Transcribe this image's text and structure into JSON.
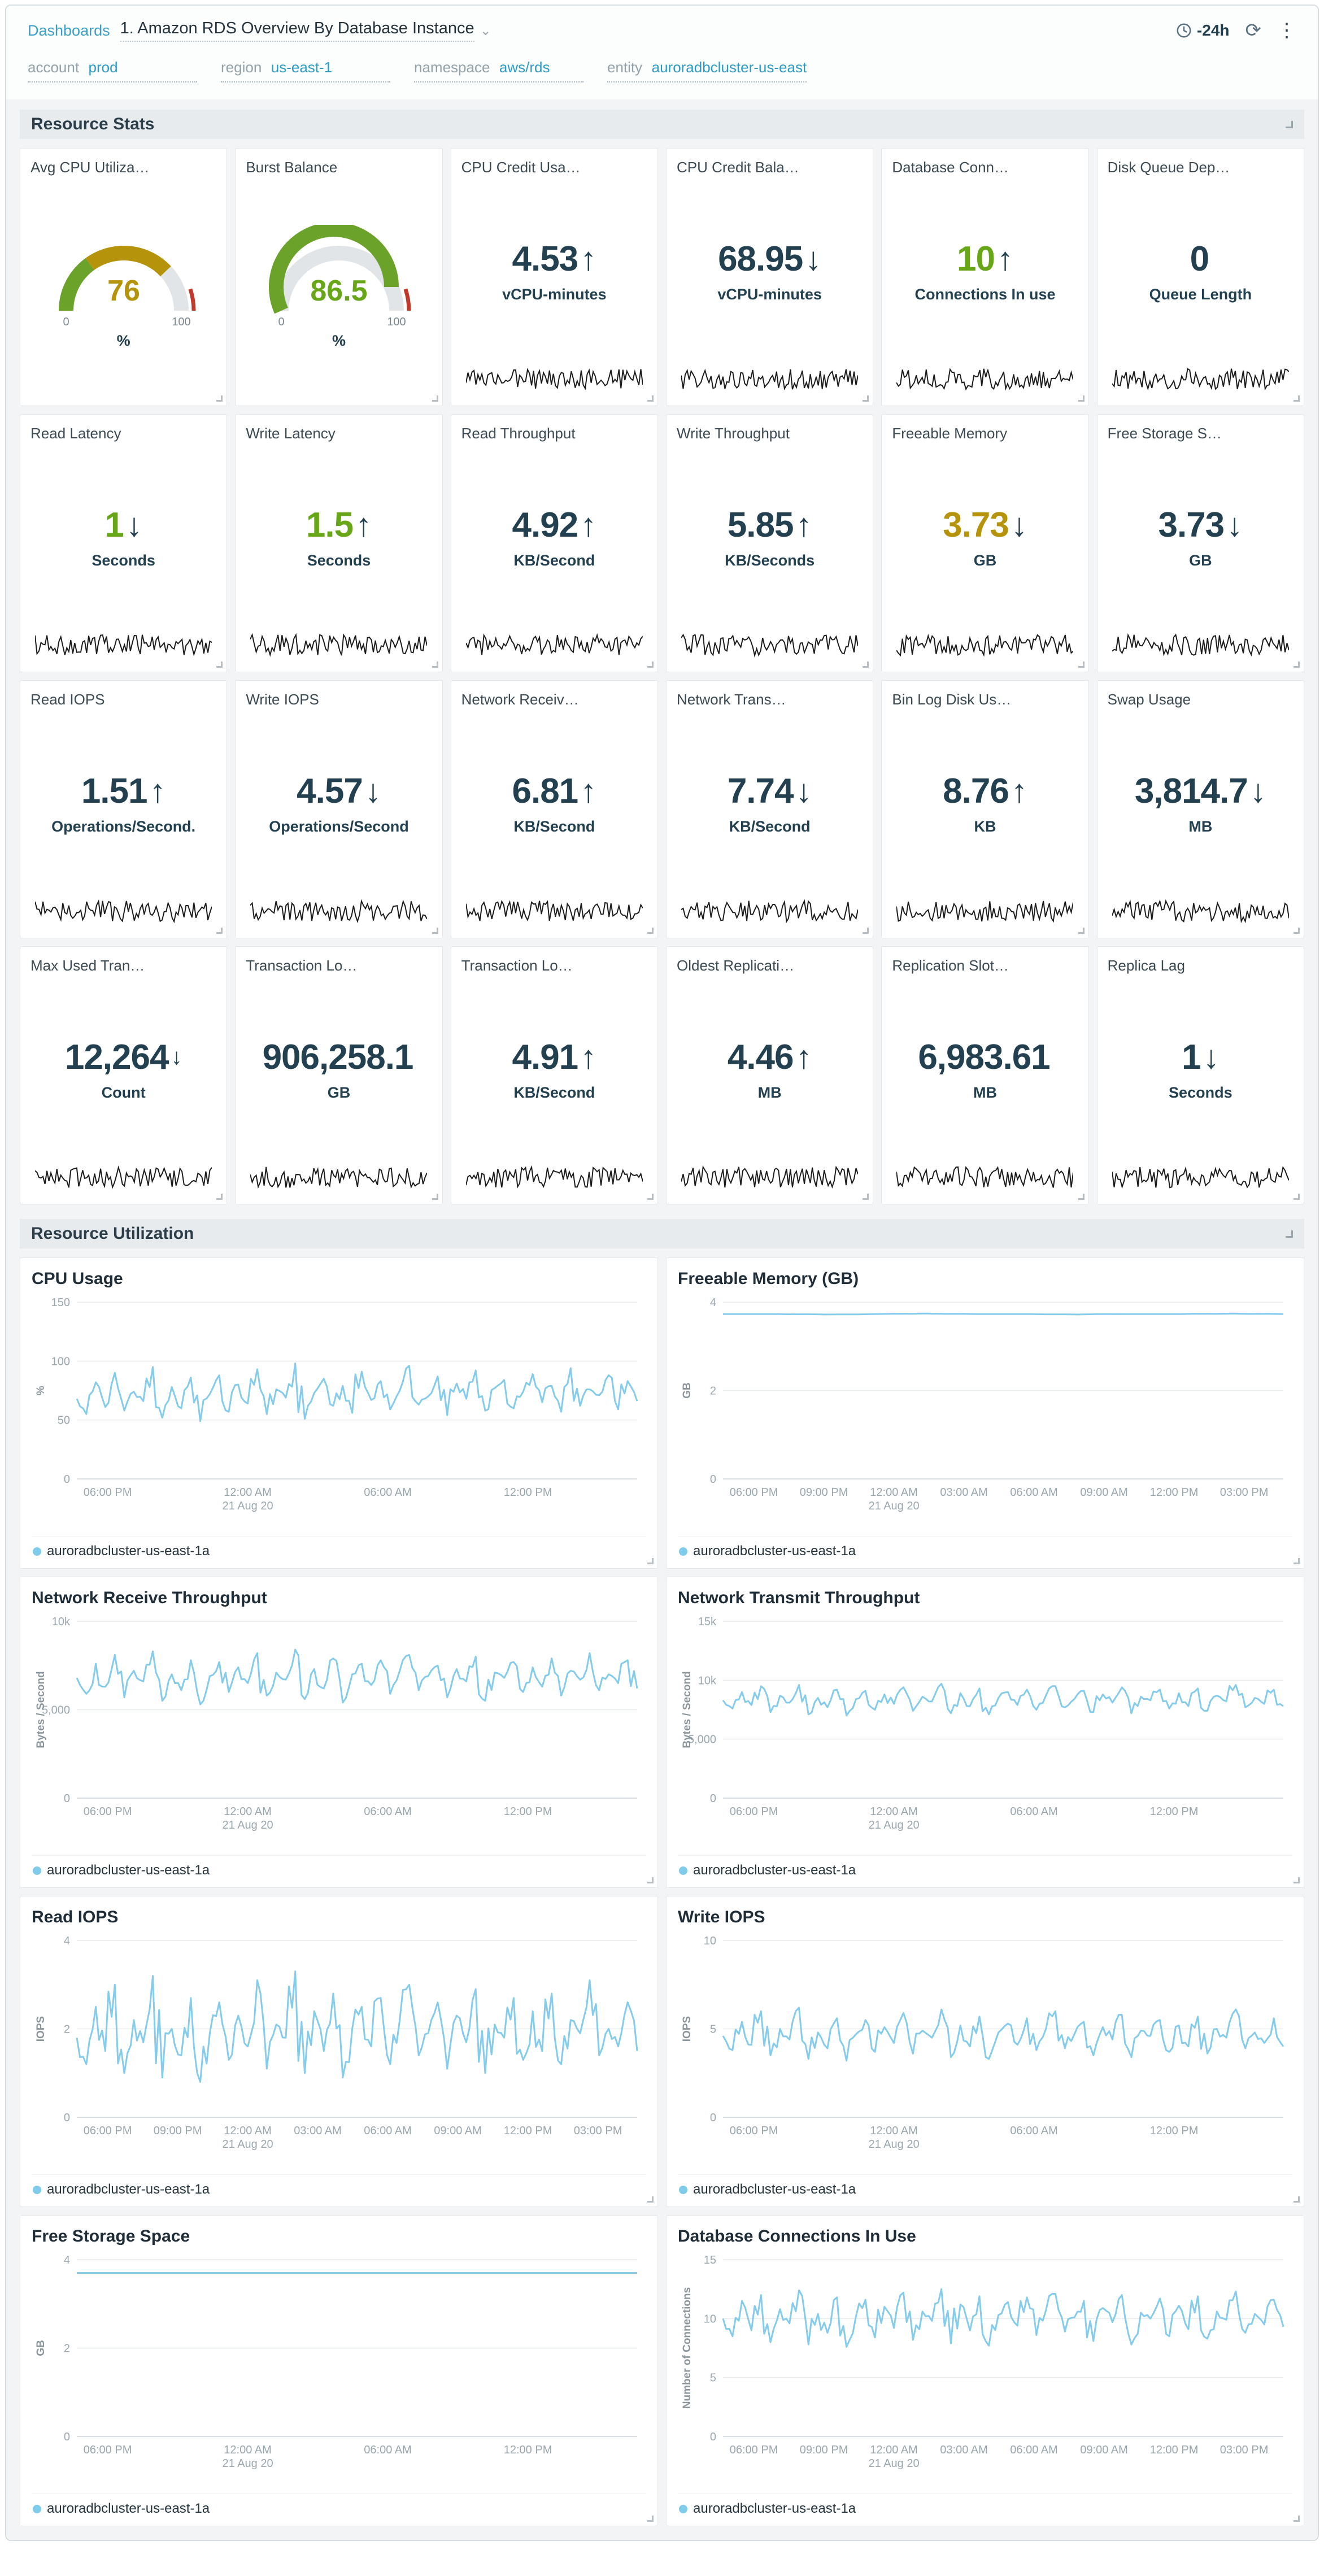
{
  "topbar": {
    "breadcrumb_root": "Dashboards",
    "title": "1. Amazon RDS Overview By Database Instance",
    "time_range": "-24h"
  },
  "filters": [
    {
      "label": "account",
      "value": "prod"
    },
    {
      "label": "region",
      "value": "us-east-1"
    },
    {
      "label": "namespace",
      "value": "aws/rds"
    },
    {
      "label": "entity",
      "value": "auroradbcluster-us-east"
    }
  ],
  "sections": {
    "stats": "Resource Stats",
    "utilization": "Resource Utilization"
  },
  "colors": {
    "accent_blue": "#2b9cc7",
    "line_blue": "#85ccec",
    "green": "#67a617",
    "gold": "#b5930b",
    "red": "#c0392b",
    "navy": "#22404f"
  },
  "stats": {
    "cards": [
      {
        "title": "Avg CPU Utiliza…",
        "type": "gauge",
        "unit": "%",
        "gauge": {
          "value": "76",
          "value_num": 76,
          "max": 100,
          "min_label": "0",
          "max_label": "100",
          "value_color": "#b5930b",
          "segments": [
            {
              "from": 0,
              "to": 30,
              "color": "#6ba229"
            },
            {
              "from": 30,
              "to": 76,
              "color": "#b5930b"
            }
          ],
          "ring": [
            {
              "from": 90,
              "to": 100,
              "color": "#c0392b"
            }
          ]
        }
      },
      {
        "title": "Burst Balance",
        "type": "gauge",
        "unit": "%",
        "gauge": {
          "value": "86.5",
          "value_num": 86.5,
          "max": 100,
          "min_label": "0",
          "max_label": "100",
          "value_color": "#67a617",
          "segments": [
            {
              "from": 0,
              "to": 86.5,
              "color": "#6ba229"
            }
          ],
          "ring": [
            {
              "from": 90,
              "to": 100,
              "color": "#c0392b"
            }
          ]
        }
      },
      {
        "title": "CPU Credit Usa…",
        "value": "4.53",
        "arrow": "↑",
        "unit": "vCPU-minutes"
      },
      {
        "title": "CPU Credit Bala…",
        "value": "68.95",
        "arrow": "↓",
        "unit": "vCPU-minutes"
      },
      {
        "title": "Database Conn…",
        "value": "10",
        "arrow": "↑",
        "unit": "Connections In use",
        "value_color": "#67a617"
      },
      {
        "title": "Disk Queue Dep…",
        "value": "0",
        "arrow": "",
        "unit": "Queue Length"
      },
      {
        "title": "Read Latency",
        "value": "1",
        "arrow": "↓",
        "unit": "Seconds",
        "value_color": "#67a617"
      },
      {
        "title": "Write Latency",
        "value": "1.5",
        "arrow": "↑",
        "unit": "Seconds",
        "value_color": "#67a617"
      },
      {
        "title": "Read Throughput",
        "value": "4.92",
        "arrow": "↑",
        "unit": "KB/Second"
      },
      {
        "title": "Write Throughput",
        "value": "5.85",
        "arrow": "↑",
        "unit": "KB/Seconds"
      },
      {
        "title": "Freeable Memory",
        "value": "3.73",
        "arrow": "↓",
        "unit": "GB",
        "value_color": "#b5930b"
      },
      {
        "title": "Free Storage S…",
        "value": "3.73",
        "arrow": "↓",
        "unit": "GB"
      },
      {
        "title": "Read IOPS",
        "value": "1.51",
        "arrow": "↑",
        "unit": "Operations/Second."
      },
      {
        "title": "Write IOPS",
        "value": "4.57",
        "arrow": "↓",
        "unit": "Operations/Second"
      },
      {
        "title": "Network Receiv…",
        "value": "6.81",
        "arrow": "↑",
        "unit": "KB/Second"
      },
      {
        "title": "Network Trans…",
        "value": "7.74",
        "arrow": "↓",
        "unit": "KB/Second"
      },
      {
        "title": "Bin Log Disk Us…",
        "value": "8.76",
        "arrow": "↑",
        "unit": "KB"
      },
      {
        "title": "Swap Usage",
        "value": "3,814.7",
        "arrow": "↓",
        "unit": "MB"
      },
      {
        "title": "Max Used Tran…",
        "value": "12,264",
        "arrow": "↓",
        "unit": "Count"
      },
      {
        "title": "Transaction Lo…",
        "value": "906,258.1",
        "arrow": "",
        "unit": "GB"
      },
      {
        "title": "Transaction Lo…",
        "value": "4.91",
        "arrow": "↑",
        "unit": "KB/Second"
      },
      {
        "title": "Oldest Replicati…",
        "value": "4.46",
        "arrow": "↑",
        "unit": "MB"
      },
      {
        "title": "Replication Slot…",
        "value": "6,983.61",
        "arrow": "",
        "unit": "MB"
      },
      {
        "title": "Replica Lag",
        "value": "1",
        "arrow": "↓",
        "unit": "Seconds"
      }
    ]
  },
  "chart_data": [
    {
      "type": "line",
      "title": "CPU Usage",
      "ylabel": "%",
      "ylim": [
        0,
        150
      ],
      "yticks": [
        0,
        50,
        100,
        150
      ],
      "ytick_labels": [
        "0",
        "50",
        "100",
        "150"
      ],
      "x_ticks": [
        "06:00 PM",
        "12:00 AM",
        "06:00 AM",
        "12:00 PM"
      ],
      "x_date_label": "21 Aug 20",
      "x_date_tick": "12:00 AM",
      "grid": true,
      "legend_position": "bottom",
      "series": [
        {
          "name": "auroradbcluster-us-east-1a",
          "values": [
            68,
            55,
            82,
            61,
            90,
            58,
            74,
            66,
            95,
            52,
            78,
            60,
            86,
            49,
            72,
            88,
            57,
            80,
            64,
            93,
            55,
            76,
            69,
            98,
            51,
            73,
            85,
            62,
            79,
            56,
            91,
            67,
            83,
            59,
            75,
            96,
            63,
            70,
            87,
            54,
            81,
            68,
            92,
            58,
            77,
            84,
            60,
            74,
            89,
            65,
            79,
            57,
            94,
            62,
            76,
            71,
            88,
            59,
            83,
            66
          ]
        }
      ]
    },
    {
      "type": "line",
      "title": "Freeable Memory (GB)",
      "ylabel": "GB",
      "ylim": [
        0,
        4
      ],
      "yticks": [
        0,
        2,
        4
      ],
      "ytick_labels": [
        "0",
        "2",
        "4"
      ],
      "x_ticks": [
        "06:00 PM",
        "09:00 PM",
        "12:00 AM",
        "03:00 AM",
        "06:00 AM",
        "09:00 AM",
        "12:00 PM",
        "03:00 PM"
      ],
      "x_date_label": "21 Aug 20",
      "x_date_tick": "12:00 AM",
      "grid": true,
      "legend_position": "bottom",
      "series": [
        {
          "name": "auroradbcluster-us-east-1a",
          "values": [
            3.73,
            3.73,
            3.72,
            3.73,
            3.74,
            3.73,
            3.73,
            3.72,
            3.73,
            3.73,
            3.74,
            3.73
          ]
        }
      ]
    },
    {
      "type": "line",
      "title": "Network Receive Throughput",
      "ylabel": "Bytes / Second",
      "ylim": [
        0,
        10000
      ],
      "yticks": [
        0,
        5000,
        10000
      ],
      "ytick_labels": [
        "0",
        "5,000",
        "10k"
      ],
      "x_ticks": [
        "06:00 PM",
        "12:00 AM",
        "06:00 AM",
        "12:00 PM"
      ],
      "x_date_label": "21 Aug 20",
      "x_date_tick": "12:00 AM",
      "grid": true,
      "legend_position": "bottom",
      "series": [
        {
          "name": "auroradbcluster-us-east-1a",
          "values": [
            6800,
            5900,
            7600,
            6300,
            8100,
            5700,
            7200,
            6600,
            8300,
            5500,
            7000,
            6100,
            7800,
            5300,
            6900,
            7700,
            6000,
            7400,
            6500,
            8200,
            5800,
            7100,
            6700,
            8400,
            5600,
            7300,
            6200,
            7900,
            5400,
            7000,
            7600,
            6400,
            7800,
            5900,
            7200,
            8100,
            6100,
            6900,
            7500,
            5700,
            7300,
            6600,
            8000,
            5500,
            7100,
            6800,
            7700,
            6000,
            7400,
            6300,
            7900,
            5800,
            7200,
            6700,
            8200,
            6100,
            7000,
            6500,
            7800,
            6200
          ]
        }
      ]
    },
    {
      "type": "line",
      "title": "Network Transmit Throughput",
      "ylabel": "Bytes / Second",
      "ylim": [
        0,
        15000
      ],
      "yticks": [
        0,
        5000,
        10000,
        15000
      ],
      "ytick_labels": [
        "0",
        "5,000",
        "10k",
        "15k"
      ],
      "x_ticks": [
        "06:00 PM",
        "12:00 AM",
        "06:00 AM",
        "12:00 PM"
      ],
      "x_date_label": "21 Aug 20",
      "x_date_tick": "12:00 AM",
      "grid": true,
      "legend_position": "bottom",
      "series": [
        {
          "name": "auroradbcluster-us-east-1a",
          "values": [
            8300,
            7600,
            9000,
            7900,
            9500,
            7300,
            8700,
            8100,
            9600,
            7100,
            8500,
            7700,
            9200,
            7000,
            8400,
            9100,
            7500,
            8800,
            8000,
            9400,
            7400,
            8600,
            8200,
            9700,
            7200,
            8900,
            7800,
            9300,
            7100,
            8500,
            9000,
            7900,
            9200,
            7500,
            8700,
            9500,
            7700,
            8400,
            9100,
            7300,
            8800,
            8100,
            9400,
            7200,
            8600,
            8300,
            9200,
            7600,
            8900,
            7800,
            9300,
            7400,
            8700,
            8200,
            9600,
            7700,
            8500,
            8000,
            9200,
            7800
          ]
        }
      ]
    },
    {
      "type": "line",
      "title": "Read IOPS",
      "ylabel": "IOPS",
      "ylim": [
        0,
        4
      ],
      "yticks": [
        0,
        2,
        4
      ],
      "ytick_labels": [
        "0",
        "2",
        "4"
      ],
      "x_ticks": [
        "06:00 PM",
        "09:00 PM",
        "12:00 AM",
        "03:00 AM",
        "06:00 AM",
        "09:00 AM",
        "12:00 PM",
        "03:00 PM"
      ],
      "x_date_label": "21 Aug 20",
      "x_date_tick": "12:00 AM",
      "grid": true,
      "legend_position": "bottom",
      "series": [
        {
          "name": "auroradbcluster-us-east-1a",
          "values": [
            1.8,
            1.2,
            2.5,
            1.5,
            3.0,
            1.0,
            2.2,
            1.7,
            3.2,
            0.9,
            2.0,
            1.4,
            2.7,
            0.8,
            1.9,
            2.6,
            1.3,
            2.3,
            1.6,
            3.1,
            1.1,
            2.1,
            1.8,
            3.3,
            1.0,
            2.4,
            1.5,
            2.8,
            0.9,
            2.0,
            2.5,
            1.6,
            2.7,
            1.2,
            2.2,
            3.0,
            1.4,
            1.9,
            2.6,
            1.1,
            2.3,
            1.7,
            2.9,
            1.0,
            2.1,
            1.8,
            2.7,
            1.3,
            2.4,
            1.5,
            2.8,
            1.2,
            2.2,
            1.9,
            3.1,
            1.4,
            2.0,
            1.6,
            2.6,
            1.5
          ]
        }
      ]
    },
    {
      "type": "line",
      "title": "Write IOPS",
      "ylabel": "IOPS",
      "ylim": [
        0,
        10
      ],
      "yticks": [
        0,
        5,
        10
      ],
      "ytick_labels": [
        "0",
        "5",
        "10"
      ],
      "x_ticks": [
        "06:00 PM",
        "12:00 AM",
        "06:00 AM",
        "12:00 PM"
      ],
      "x_date_label": "21 Aug 20",
      "x_date_tick": "12:00 AM",
      "grid": true,
      "legend_position": "bottom",
      "series": [
        {
          "name": "auroradbcluster-us-east-1a",
          "values": [
            4.6,
            3.8,
            5.4,
            4.1,
            6.0,
            3.5,
            5.0,
            4.4,
            6.2,
            3.3,
            4.8,
            3.9,
            5.6,
            3.2,
            4.7,
            5.5,
            3.7,
            5.1,
            4.2,
            5.9,
            3.6,
            4.9,
            4.5,
            6.1,
            3.4,
            5.2,
            4.0,
            5.7,
            3.3,
            4.8,
            5.3,
            4.1,
            5.6,
            3.8,
            5.0,
            6.0,
            3.9,
            4.7,
            5.4,
            3.5,
            5.1,
            4.4,
            5.8,
            3.4,
            4.9,
            4.6,
            5.5,
            3.7,
            5.2,
            4.0,
            5.7,
            3.6,
            5.0,
            4.5,
            6.1,
            3.9,
            4.8,
            4.2,
            5.6,
            4.0
          ]
        }
      ]
    },
    {
      "type": "line",
      "title": "Free Storage Space",
      "ylabel": "GB",
      "ylim": [
        0,
        4
      ],
      "yticks": [
        0,
        2,
        4
      ],
      "ytick_labels": [
        "0",
        "2",
        "4"
      ],
      "x_ticks": [
        "06:00 PM",
        "12:00 AM",
        "06:00 AM",
        "12:00 PM"
      ],
      "x_date_label": "21 Aug 20",
      "x_date_tick": "12:00 AM",
      "grid": true,
      "legend_position": "bottom",
      "series": [
        {
          "name": "auroradbcluster-us-east-1a",
          "values": [
            3.7,
            3.7,
            3.7,
            3.7,
            3.7,
            3.7,
            3.7,
            3.7,
            3.7,
            3.7,
            3.7,
            3.7
          ]
        }
      ]
    },
    {
      "type": "line",
      "title": "Database Connections In Use",
      "ylabel": "Number of Connections",
      "ylim": [
        0,
        15
      ],
      "yticks": [
        0,
        5,
        10,
        15
      ],
      "ytick_labels": [
        "0",
        "5",
        "10",
        "15"
      ],
      "x_ticks": [
        "06:00 PM",
        "09:00 PM",
        "12:00 AM",
        "03:00 AM",
        "06:00 AM",
        "09:00 AM",
        "12:00 PM",
        "03:00 PM"
      ],
      "x_date_label": "21 Aug 20",
      "x_date_tick": "12:00 AM",
      "grid": true,
      "legend_position": "bottom",
      "series": [
        {
          "name": "auroradbcluster-us-east-1a",
          "values": [
            10,
            8.5,
            11.5,
            9,
            12,
            8,
            10.8,
            9.6,
            12.4,
            7.8,
            10.4,
            8.8,
            11.8,
            7.6,
            10.2,
            11.6,
            8.4,
            11,
            9.2,
            12.2,
            8.2,
            10.6,
            9.8,
            12.5,
            7.9,
            11.2,
            9,
            11.9,
            7.7,
            10.3,
            11.4,
            9.4,
            11.8,
            8.6,
            10.7,
            12.1,
            8.9,
            10.1,
            11.5,
            8.1,
            10.9,
            9.7,
            12,
            7.8,
            10.5,
            10,
            11.7,
            8.5,
            11.1,
            9.1,
            11.9,
            8.3,
            10.6,
            9.9,
            12.3,
            8.8,
            10.4,
            9.5,
            11.6,
            9.3
          ]
        }
      ]
    }
  ]
}
